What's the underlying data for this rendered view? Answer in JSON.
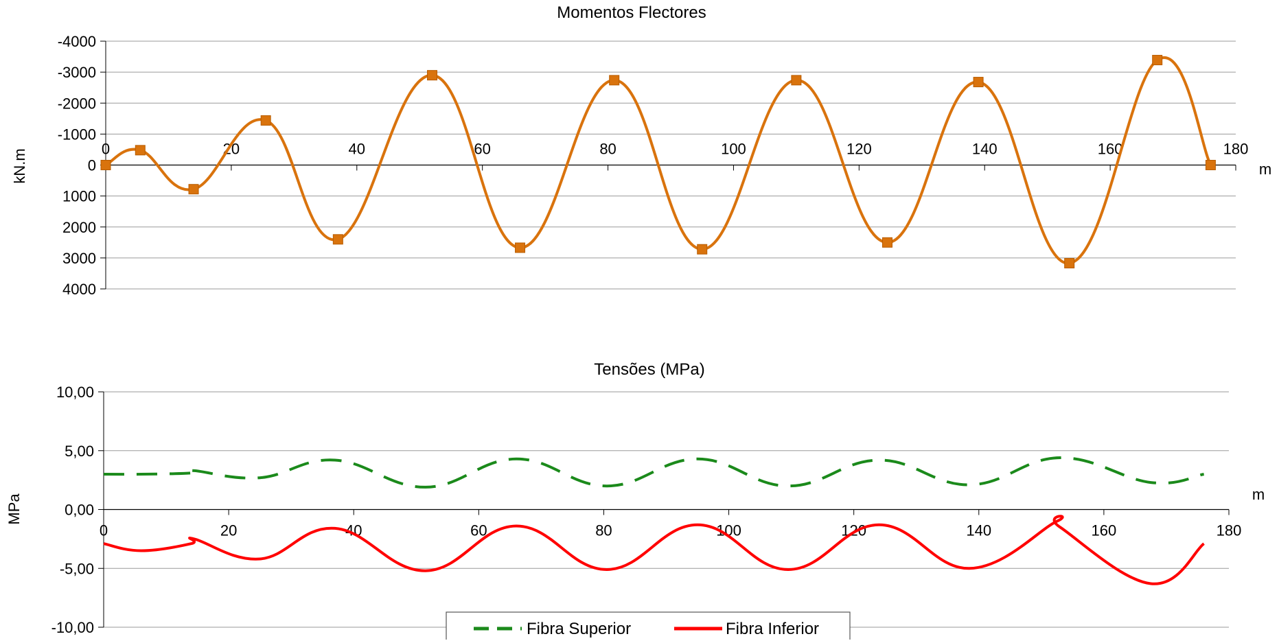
{
  "chart_data": [
    {
      "type": "line",
      "title": "Momentos Flectores",
      "xlabel": "m",
      "ylabel": "kN.m",
      "xlim": [
        0,
        180
      ],
      "ylim": [
        4000,
        -4000
      ],
      "y_inverted": true,
      "grid": true,
      "xticks": [
        "0",
        "20",
        "40",
        "60",
        "80",
        "100",
        "120",
        "140",
        "160",
        "180"
      ],
      "yticks": [
        "-4000",
        "-3000",
        "-2000",
        "-1000",
        "0",
        "1000",
        "2000",
        "3000",
        "4000"
      ],
      "series": [
        {
          "color": "#D9730D",
          "marker": "square",
          "x": [
            0,
            5.5,
            14,
            25.5,
            37,
            52,
            66,
            81,
            95,
            110,
            124.5,
            139,
            153.5,
            167.5,
            176
          ],
          "y": [
            0,
            -480,
            780,
            -1440,
            2400,
            -2900,
            2670,
            -2740,
            2720,
            -2740,
            2500,
            -2680,
            3170,
            -3390,
            0
          ]
        }
      ]
    },
    {
      "type": "line",
      "title": "Tensões (MPa)",
      "xlabel": "m",
      "ylabel": "MPa",
      "xlim": [
        0,
        180
      ],
      "ylim": [
        -10,
        10
      ],
      "grid": true,
      "xticks": [
        "0",
        "20",
        "40",
        "60",
        "80",
        "100",
        "120",
        "140",
        "160",
        "180"
      ],
      "yticks": [
        "10,00",
        "5,00",
        "0,00",
        "-5,00",
        "-10,00"
      ],
      "legend": "bottom",
      "series": [
        {
          "name": "Fibra Superior",
          "color": "#1B8A1B",
          "dash": true,
          "x": [
            0,
            6,
            14,
            14.5,
            25,
            37,
            51.5,
            66,
            80.5,
            95,
            109.5,
            124,
            138.5,
            153,
            167.5,
            176
          ],
          "y": [
            3.0,
            3.0,
            3.1,
            3.3,
            2.7,
            4.2,
            1.9,
            4.3,
            2.0,
            4.3,
            2.0,
            4.2,
            2.1,
            4.4,
            2.3,
            3.0
          ]
        },
        {
          "name": "Fibra Inferior",
          "color": "#FF0000",
          "dash": false,
          "x": [
            0,
            6,
            14,
            14.5,
            25,
            37,
            51.5,
            66,
            80.5,
            95,
            109.5,
            124,
            138.5,
            152.5,
            153,
            167.5,
            176
          ],
          "y": [
            -2.9,
            -3.5,
            -2.9,
            -2.5,
            -4.2,
            -1.6,
            -5.2,
            -1.4,
            -5.1,
            -1.3,
            -5.1,
            -1.3,
            -5.0,
            -1.0,
            -1.5,
            -6.3,
            -2.9
          ]
        }
      ]
    }
  ]
}
